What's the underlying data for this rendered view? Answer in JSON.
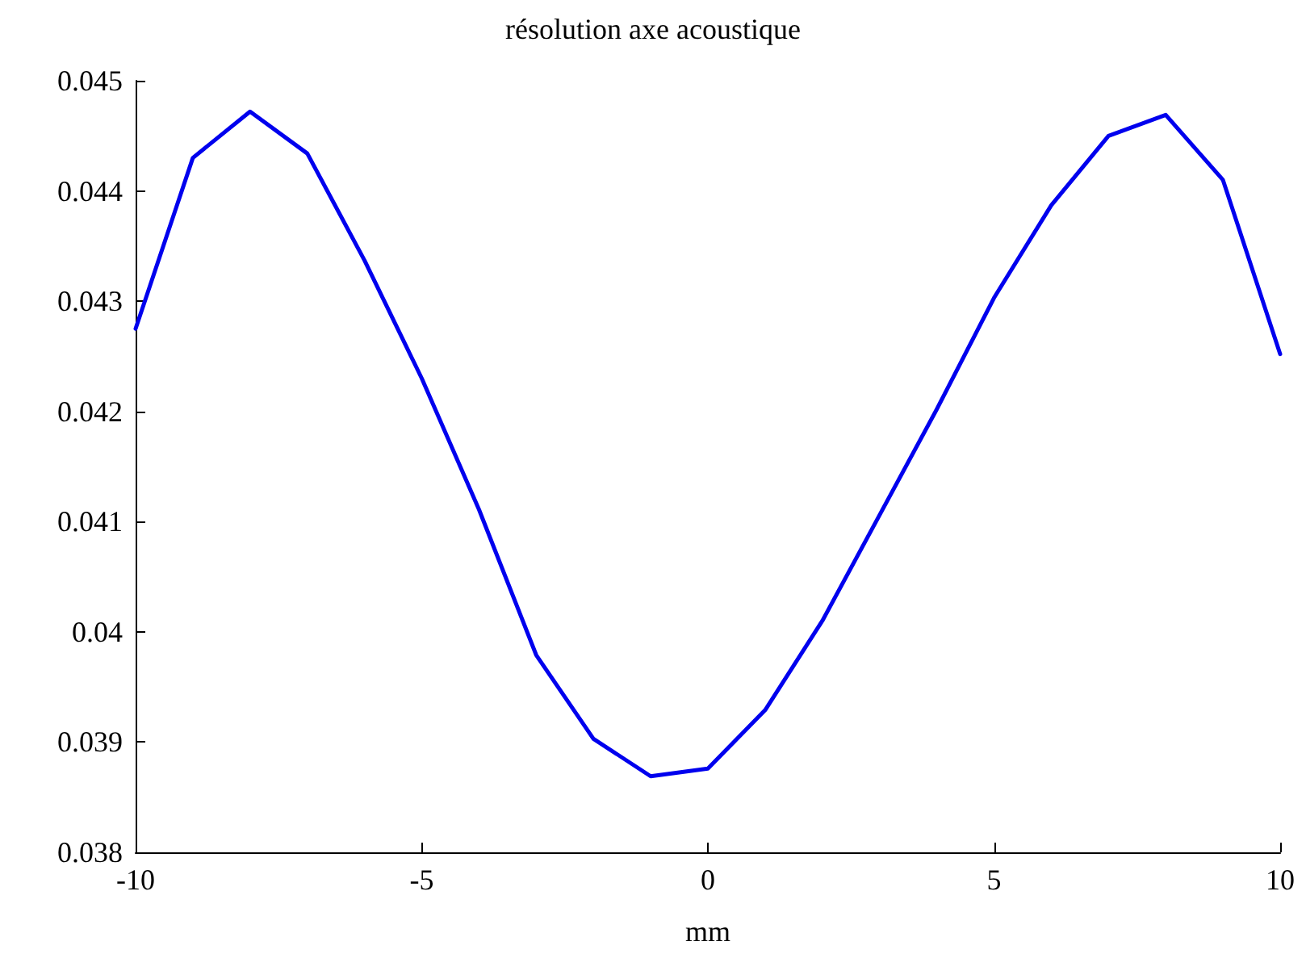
{
  "chart_data": {
    "type": "line",
    "title": "résolution axe acoustique",
    "xlabel": "mm",
    "x": [
      -10,
      -9,
      -8,
      -7,
      -6,
      -5,
      -4,
      -3,
      -2,
      -1,
      0,
      1,
      2,
      3,
      4,
      5,
      6,
      7,
      8,
      9,
      10
    ],
    "series": [
      {
        "color": "#0000ee",
        "values": [
          0.04275,
          0.0443,
          0.04472,
          0.04434,
          0.04337,
          0.0423,
          0.04111,
          0.03979,
          0.03903,
          0.03869,
          0.03876,
          0.03929,
          0.0401,
          0.04106,
          0.04202,
          0.04303,
          0.04387,
          0.0445,
          0.04469,
          0.0441,
          0.04252
        ]
      }
    ],
    "xlim": [
      -10,
      10
    ],
    "xticks": [
      -10,
      -5,
      0,
      5,
      10
    ],
    "ylim": [
      0.038,
      0.045
    ],
    "yticks": [
      0.038,
      0.039,
      0.04,
      0.041,
      0.042,
      0.043,
      0.044,
      0.045
    ],
    "grid": false,
    "marker": "none",
    "line_style": "solid"
  }
}
